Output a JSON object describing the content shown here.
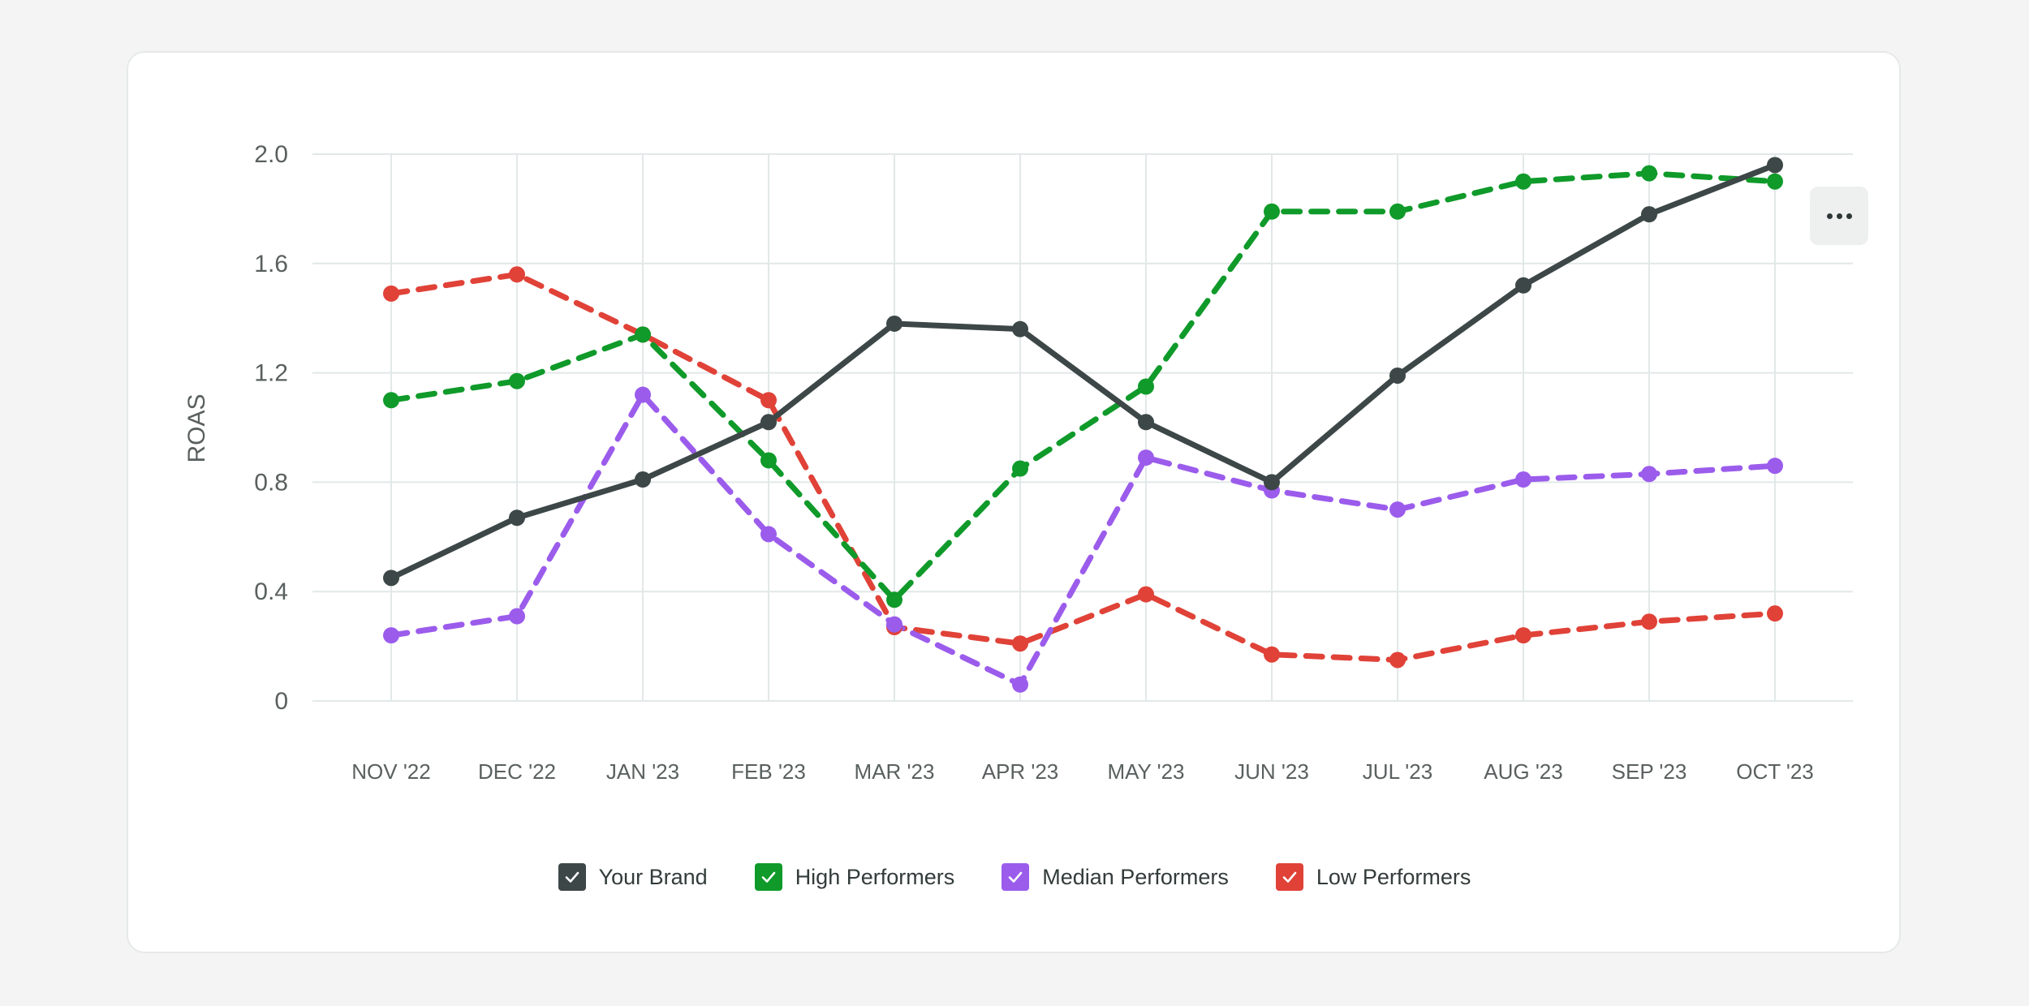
{
  "chart_data": {
    "type": "line",
    "title": "",
    "xlabel": "",
    "ylabel": "ROAS",
    "ylim": [
      0,
      2.0
    ],
    "yticks": [
      "0",
      "0.4",
      "0.8",
      "1.2",
      "1.6",
      "2.0"
    ],
    "ytick_values": [
      0,
      0.4,
      0.8,
      1.2,
      1.6,
      2.0
    ],
    "grid": true,
    "legend_position": "bottom-center",
    "categories": [
      "NOV '22",
      "DEC '22",
      "JAN '23",
      "FEB '23",
      "MAR '23",
      "APR '23",
      "MAY '23",
      "JUN '23",
      "JUL '23",
      "AUG '23",
      "SEP '23",
      "OCT '23"
    ],
    "series": [
      {
        "name": "Your Brand",
        "color": "#3d4747",
        "style": "solid",
        "values": [
          0.45,
          0.67,
          0.81,
          1.02,
          1.38,
          1.36,
          1.02,
          0.8,
          1.19,
          1.52,
          1.78,
          1.96
        ]
      },
      {
        "name": "High Performers",
        "color": "#0f9a2a",
        "style": "dashed",
        "values": [
          1.1,
          1.17,
          1.34,
          0.88,
          0.37,
          0.85,
          1.15,
          1.79,
          1.79,
          1.9,
          1.93,
          1.9
        ]
      },
      {
        "name": "Median Performers",
        "color": "#9b5cec",
        "style": "dashed",
        "values": [
          0.24,
          0.31,
          1.12,
          0.61,
          0.28,
          0.06,
          0.89,
          0.77,
          0.7,
          0.81,
          0.83,
          0.86
        ]
      },
      {
        "name": "Low Performers",
        "color": "#e04238",
        "style": "dashed",
        "values": [
          1.49,
          1.56,
          1.34,
          1.1,
          0.27,
          0.21,
          0.39,
          0.17,
          0.15,
          0.24,
          0.29,
          0.32
        ]
      }
    ]
  },
  "toolbar": {
    "more_icon": "more-horizontal-icon"
  },
  "legend": {
    "check_icon": "check-icon"
  }
}
